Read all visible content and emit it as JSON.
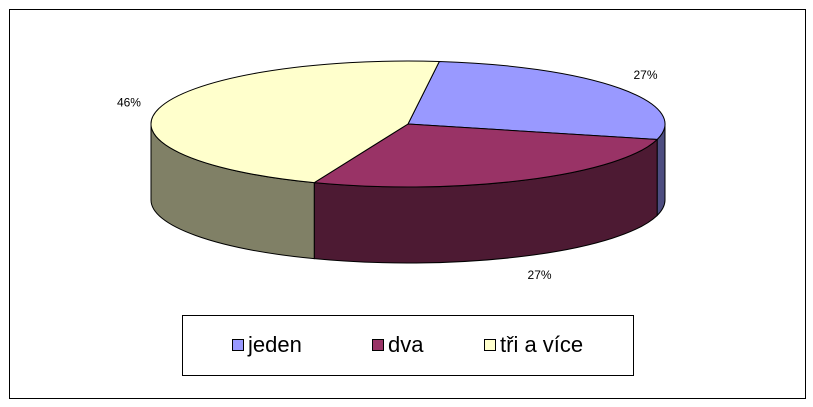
{
  "chart_data": {
    "type": "pie3d",
    "categories": [
      "jeden",
      "dva",
      "tři a více"
    ],
    "values": [
      27,
      27,
      46
    ],
    "value_labels": [
      "27%",
      "27%",
      "46%"
    ],
    "colors": [
      "#9999ff",
      "#993366",
      "#ffffcc"
    ],
    "legend": "bottom"
  }
}
